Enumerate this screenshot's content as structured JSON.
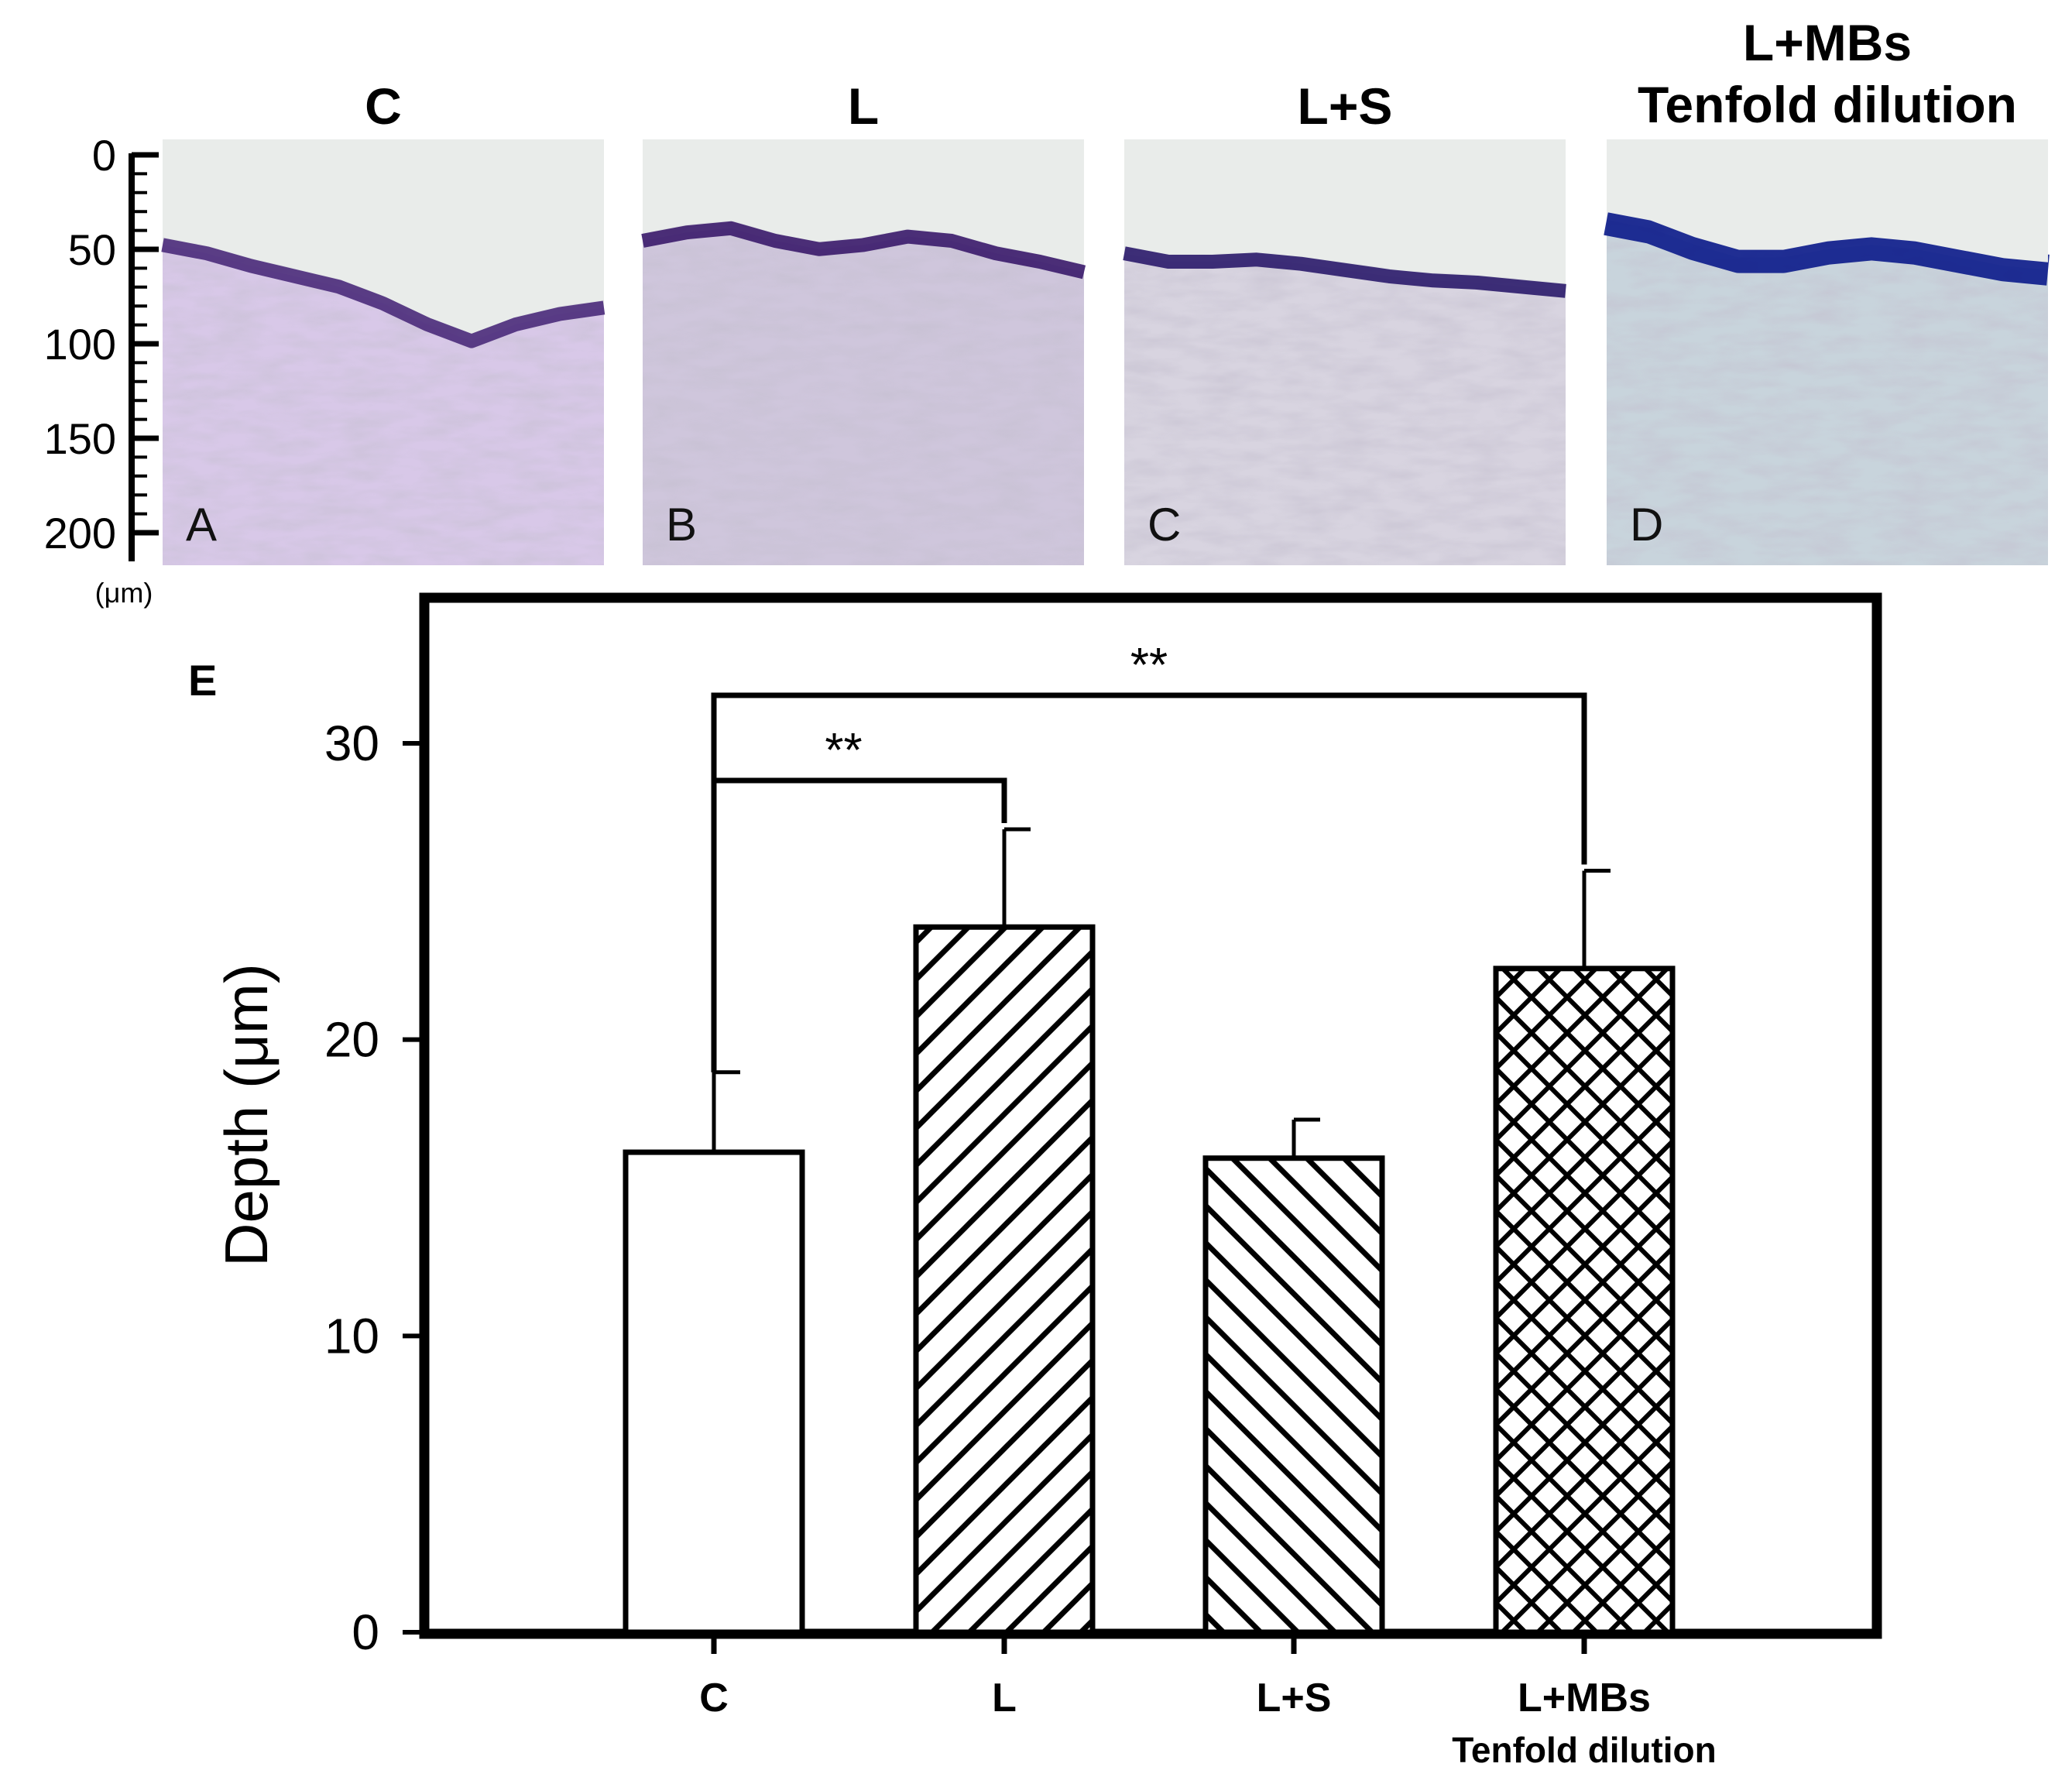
{
  "panels": [
    {
      "title_lines": [
        "C"
      ],
      "letter": "A",
      "stain": "#4a2a7a",
      "tone": "#d8c8e8"
    },
    {
      "title_lines": [
        "L"
      ],
      "letter": "B",
      "stain": "#3a1a6a",
      "tone": "#cfc6dc"
    },
    {
      "title_lines": [
        "L+S"
      ],
      "letter": "C",
      "stain": "#2a1a6a",
      "tone": "#d8d4e0"
    },
    {
      "title_lines": [
        "L+MBs",
        "Tenfold dilution"
      ],
      "letter": "D",
      "stain": "#0a1a8a",
      "tone": "#c8d4dc"
    }
  ],
  "micrograph_scale": {
    "ticks": [
      "0",
      "50",
      "100",
      "150",
      "200"
    ],
    "unit": "(μm)"
  },
  "chart_panel_letter": "E",
  "chart_data": {
    "type": "bar",
    "categories": [
      "C",
      "L",
      "L+S",
      "L+MBs"
    ],
    "category_sublabels": [
      "",
      "",
      "",
      "Tenfold dilution"
    ],
    "values": [
      16.2,
      23.8,
      16.0,
      22.4
    ],
    "errors": [
      2.7,
      3.3,
      1.3,
      3.3
    ],
    "patterns": [
      "none",
      "forward-diagonal",
      "backward-diagonal",
      "crosshatch"
    ],
    "ylabel": "Depth (μm)",
    "xlabel": "",
    "ylim": [
      0,
      30
    ],
    "yticks": [
      "0",
      "10",
      "20",
      "30"
    ],
    "significance": [
      {
        "from": "C",
        "to": "L",
        "label": "**"
      },
      {
        "from": "C",
        "to": "L+MBs",
        "label": "**"
      }
    ]
  }
}
